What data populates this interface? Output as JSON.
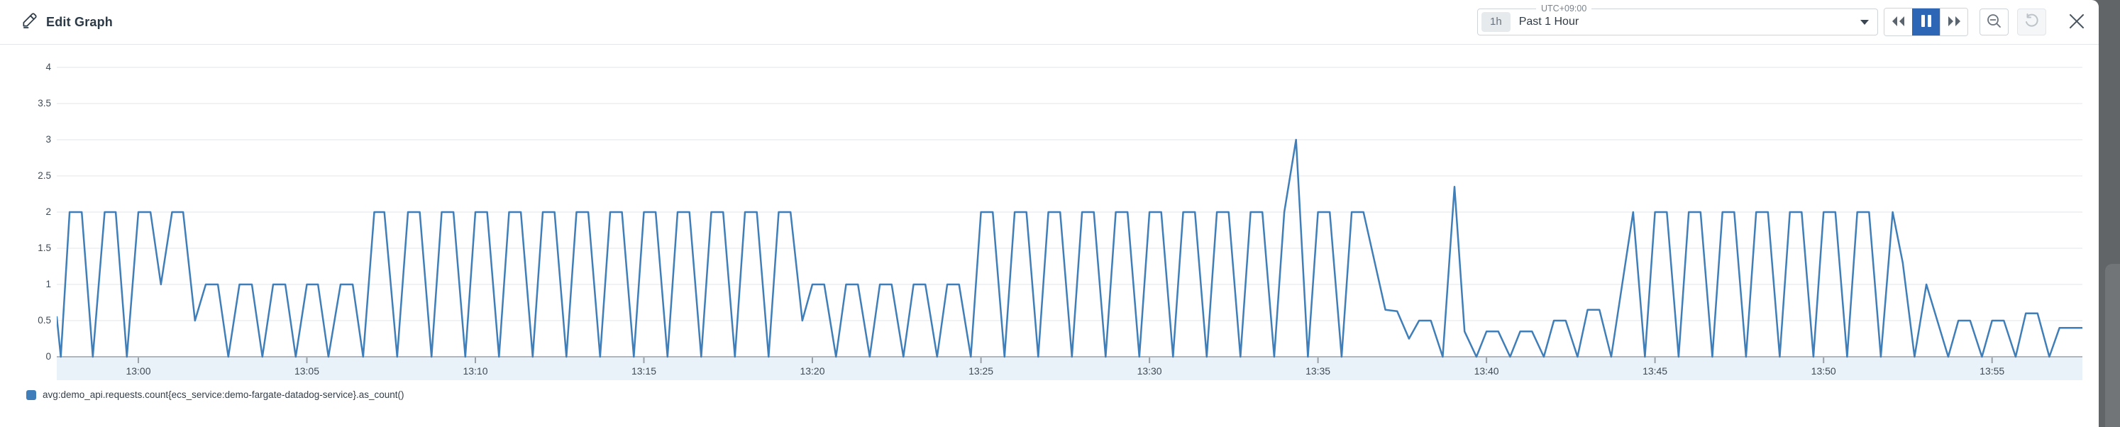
{
  "header": {
    "title": "Edit Graph"
  },
  "timebar": {
    "timezone_label": "UTC+09:00",
    "range_badge": "1h",
    "range_label": "Past 1 Hour"
  },
  "controls": {
    "rewind_icon": "rewind-icon",
    "pause_icon": "pause-icon",
    "forward_icon": "forward-icon",
    "zoom_out_icon": "zoom-out-icon",
    "undo_icon": "undo-icon",
    "close_icon": "close-icon",
    "pause_active": true,
    "undo_disabled": true
  },
  "colors": {
    "line_blue": "#3f7eb8",
    "pause_active_bg": "#2d66b5",
    "axis_band_bg": "#eaf2f9",
    "axis_baseline": "#b0b6bb",
    "gridline": "#ebedef",
    "text_dark": "#2c3a47"
  },
  "chart_data": {
    "type": "line",
    "title": "",
    "xlabel": "",
    "ylabel": "",
    "grid": true,
    "legend_position": "bottom-left",
    "x_axis": {
      "reference": "time of day, minutes relative to 13:00",
      "range_minutes": [
        -2.42,
        57.68
      ],
      "ticks": [
        {
          "offset": 0,
          "label": "13:00"
        },
        {
          "offset": 5,
          "label": "13:05"
        },
        {
          "offset": 10,
          "label": "13:10"
        },
        {
          "offset": 15,
          "label": "13:15"
        },
        {
          "offset": 20,
          "label": "13:20"
        },
        {
          "offset": 25,
          "label": "13:25"
        },
        {
          "offset": 30,
          "label": "13:30"
        },
        {
          "offset": 35,
          "label": "13:35"
        },
        {
          "offset": 40,
          "label": "13:40"
        },
        {
          "offset": 45,
          "label": "13:45"
        },
        {
          "offset": 50,
          "label": "13:50"
        },
        {
          "offset": 55,
          "label": "13:55"
        }
      ]
    },
    "y_axis": {
      "min": 0,
      "max": 4,
      "ticks": [
        0,
        0.5,
        1,
        1.5,
        2,
        2.5,
        3,
        3.5,
        4
      ]
    },
    "series": [
      {
        "name": "avg:demo_api.requests.count{ecs_service:demo-fargate-datadog-service}.as_count()",
        "color": "#3f7eb8",
        "points": [
          [
            -2.42,
            0.55
          ],
          [
            -2.3,
            0
          ],
          [
            -2.04,
            2
          ],
          [
            -1.68,
            2
          ],
          [
            -1.35,
            0
          ],
          [
            -1.0,
            2
          ],
          [
            -0.67,
            2
          ],
          [
            -0.34,
            0
          ],
          [
            0,
            2
          ],
          [
            0.36,
            2
          ],
          [
            0.67,
            1
          ],
          [
            1.0,
            2
          ],
          [
            1.33,
            2
          ],
          [
            1.68,
            0.5
          ],
          [
            2.0,
            1
          ],
          [
            2.36,
            1
          ],
          [
            2.67,
            0
          ],
          [
            3.0,
            1
          ],
          [
            3.37,
            1
          ],
          [
            3.68,
            0
          ],
          [
            4.0,
            1
          ],
          [
            4.36,
            1
          ],
          [
            4.67,
            0
          ],
          [
            5.0,
            1
          ],
          [
            5.33,
            1
          ],
          [
            5.64,
            0
          ],
          [
            6.0,
            1
          ],
          [
            6.36,
            1
          ],
          [
            6.67,
            0
          ],
          [
            7.0,
            2
          ],
          [
            7.3,
            2
          ],
          [
            7.68,
            0
          ],
          [
            8.0,
            2
          ],
          [
            8.35,
            2
          ],
          [
            8.7,
            0
          ],
          [
            9.0,
            2
          ],
          [
            9.35,
            2
          ],
          [
            9.7,
            0
          ],
          [
            10.0,
            2
          ],
          [
            10.35,
            2
          ],
          [
            10.7,
            0
          ],
          [
            11.0,
            2
          ],
          [
            11.35,
            2
          ],
          [
            11.7,
            0
          ],
          [
            12.0,
            2
          ],
          [
            12.35,
            2
          ],
          [
            12.7,
            0
          ],
          [
            13.0,
            2
          ],
          [
            13.35,
            2
          ],
          [
            13.7,
            0
          ],
          [
            14.0,
            2
          ],
          [
            14.35,
            2
          ],
          [
            14.7,
            0
          ],
          [
            15.0,
            2
          ],
          [
            15.35,
            2
          ],
          [
            15.7,
            0
          ],
          [
            16.0,
            2
          ],
          [
            16.35,
            2
          ],
          [
            16.7,
            0
          ],
          [
            17.0,
            2
          ],
          [
            17.35,
            2
          ],
          [
            17.7,
            0
          ],
          [
            18.0,
            2
          ],
          [
            18.35,
            2
          ],
          [
            18.7,
            0
          ],
          [
            19.0,
            2
          ],
          [
            19.35,
            2
          ],
          [
            19.7,
            0.5
          ],
          [
            20.0,
            1
          ],
          [
            20.35,
            1
          ],
          [
            20.7,
            0
          ],
          [
            21.0,
            1
          ],
          [
            21.35,
            1
          ],
          [
            21.7,
            0
          ],
          [
            22.0,
            1
          ],
          [
            22.35,
            1
          ],
          [
            22.7,
            0
          ],
          [
            23.0,
            1
          ],
          [
            23.35,
            1
          ],
          [
            23.7,
            0
          ],
          [
            24.0,
            1
          ],
          [
            24.35,
            1
          ],
          [
            24.7,
            0
          ],
          [
            25.0,
            2
          ],
          [
            25.35,
            2
          ],
          [
            25.7,
            0
          ],
          [
            26.0,
            2
          ],
          [
            26.35,
            2
          ],
          [
            26.7,
            0
          ],
          [
            27.0,
            2
          ],
          [
            27.35,
            2
          ],
          [
            27.7,
            0
          ],
          [
            28.0,
            2
          ],
          [
            28.35,
            2
          ],
          [
            28.7,
            0
          ],
          [
            29.0,
            2
          ],
          [
            29.35,
            2
          ],
          [
            29.7,
            0
          ],
          [
            30.0,
            2
          ],
          [
            30.35,
            2
          ],
          [
            30.7,
            0
          ],
          [
            31.0,
            2
          ],
          [
            31.35,
            2
          ],
          [
            31.7,
            0
          ],
          [
            32.0,
            2
          ],
          [
            32.35,
            2
          ],
          [
            32.7,
            0
          ],
          [
            33.0,
            2
          ],
          [
            33.35,
            2
          ],
          [
            33.7,
            0
          ],
          [
            34.0,
            2
          ],
          [
            34.35,
            3
          ],
          [
            34.7,
            0
          ],
          [
            35.0,
            2
          ],
          [
            35.35,
            2
          ],
          [
            35.7,
            0
          ],
          [
            36.0,
            2
          ],
          [
            36.35,
            2
          ],
          [
            37.0,
            0.65
          ],
          [
            37.35,
            0.63
          ],
          [
            37.7,
            0.25
          ],
          [
            38.0,
            0.5
          ],
          [
            38.35,
            0.5
          ],
          [
            38.7,
            0
          ],
          [
            39.05,
            2.35
          ],
          [
            39.35,
            0.35
          ],
          [
            39.7,
            0
          ],
          [
            40.0,
            0.35
          ],
          [
            40.35,
            0.35
          ],
          [
            40.7,
            0
          ],
          [
            41.0,
            0.35
          ],
          [
            41.35,
            0.35
          ],
          [
            41.7,
            0
          ],
          [
            42.0,
            0.5
          ],
          [
            42.35,
            0.5
          ],
          [
            42.7,
            0
          ],
          [
            43.0,
            0.65
          ],
          [
            43.35,
            0.65
          ],
          [
            43.7,
            0
          ],
          [
            44.35,
            2
          ],
          [
            44.7,
            0
          ],
          [
            45.0,
            2
          ],
          [
            45.35,
            2
          ],
          [
            45.7,
            0
          ],
          [
            46.0,
            2
          ],
          [
            46.35,
            2
          ],
          [
            46.7,
            0
          ],
          [
            47.0,
            2
          ],
          [
            47.35,
            2
          ],
          [
            47.7,
            0
          ],
          [
            48.0,
            2
          ],
          [
            48.35,
            2
          ],
          [
            48.7,
            0
          ],
          [
            49.0,
            2
          ],
          [
            49.35,
            2
          ],
          [
            49.7,
            0
          ],
          [
            50.0,
            2
          ],
          [
            50.35,
            2
          ],
          [
            50.7,
            0
          ],
          [
            51.0,
            2
          ],
          [
            51.35,
            2
          ],
          [
            51.7,
            0
          ],
          [
            52.05,
            2
          ],
          [
            52.35,
            1.3
          ],
          [
            52.7,
            0
          ],
          [
            53.05,
            1
          ],
          [
            53.7,
            0
          ],
          [
            54.0,
            0.5
          ],
          [
            54.35,
            0.5
          ],
          [
            54.7,
            0
          ],
          [
            55.0,
            0.5
          ],
          [
            55.35,
            0.5
          ],
          [
            55.7,
            0
          ],
          [
            56.0,
            0.6
          ],
          [
            56.35,
            0.6
          ],
          [
            56.7,
            0
          ],
          [
            57.0,
            0.4
          ],
          [
            57.35,
            0.4
          ],
          [
            57.68,
            0.4
          ]
        ]
      }
    ]
  },
  "legend": {
    "items": [
      {
        "label": "avg:demo_api.requests.count{ecs_service:demo-fargate-datadog-service}.as_count()",
        "color": "#3f7eb8"
      }
    ]
  }
}
